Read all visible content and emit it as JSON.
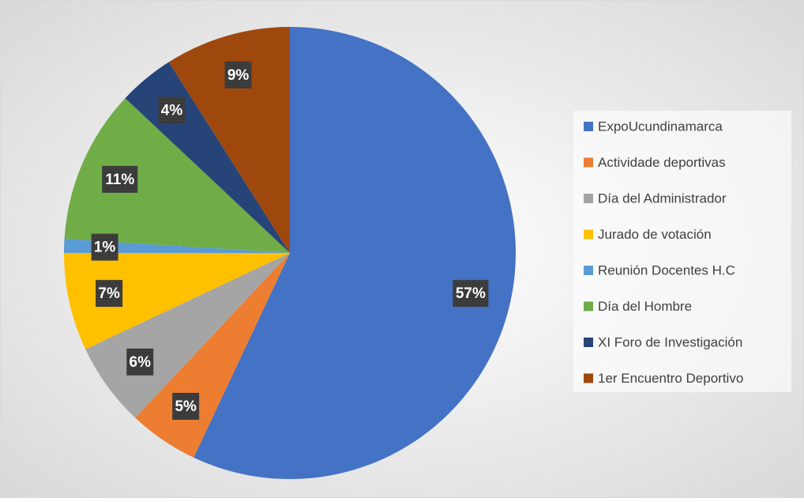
{
  "chart_data": {
    "type": "pie",
    "categories": [
      "ExpoUcundinamarca",
      "Actividade deportivas",
      "Día del Administrador",
      "Jurado de votación",
      "Reunión Docentes H.C",
      "Día del Hombre",
      "XI Foro de Investigación",
      "1er Encuentro Deportivo"
    ],
    "values": [
      57,
      5,
      6,
      7,
      1,
      11,
      4,
      9
    ],
    "value_labels": [
      "57%",
      "5%",
      "6%",
      "7%",
      "1%",
      "11%",
      "4%",
      "9%"
    ],
    "colors": [
      "#4472c4",
      "#ed7d31",
      "#a5a5a5",
      "#ffc000",
      "#5b9bd5",
      "#70ad47",
      "#264478",
      "#9e480e"
    ],
    "legend": "right"
  }
}
